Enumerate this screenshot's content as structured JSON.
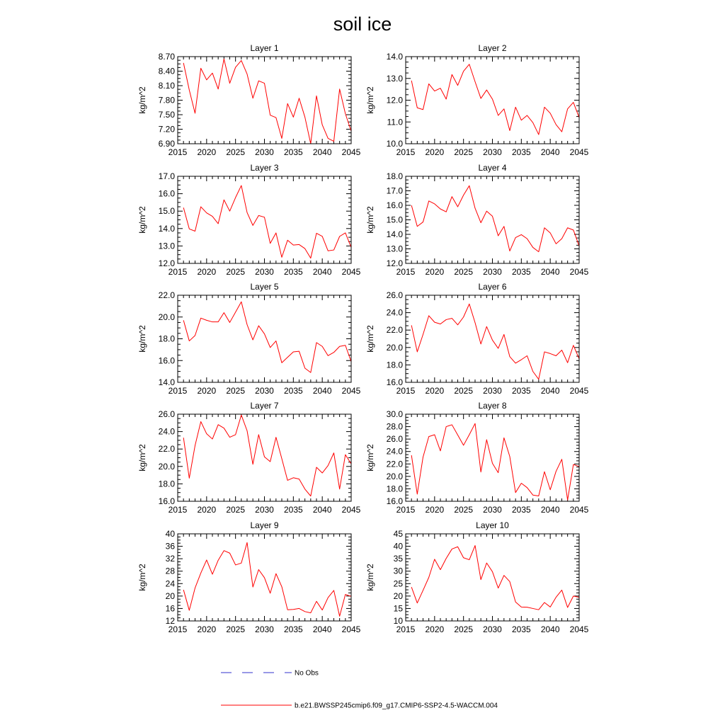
{
  "title": "soil ice",
  "legend": {
    "items": [
      {
        "label": "No Obs",
        "color": "#3333cc",
        "style": "dashed"
      },
      {
        "label": "b.e21.BWSSP245cmip6.f09_g17.CMIP6-SSP2-4.5-WACCM.004",
        "color": "#ff0000",
        "style": "solid"
      }
    ]
  },
  "chart_data": [
    {
      "type": "line",
      "title": "Layer 1",
      "ylabel": "kg/m^2",
      "x": [
        2016,
        2017,
        2018,
        2019,
        2020,
        2021,
        2022,
        2023,
        2024,
        2025,
        2026,
        2027,
        2028,
        2029,
        2030,
        2031,
        2032,
        2033,
        2034,
        2035,
        2036,
        2037,
        2038,
        2039,
        2040,
        2041,
        2042,
        2043,
        2044,
        2045
      ],
      "xlim": [
        2015,
        2045
      ],
      "xticks": [
        "2015",
        "2020",
        "2025",
        "2030",
        "2035",
        "2040",
        "2045"
      ],
      "ylim": [
        6.9,
        8.7
      ],
      "yticks": [
        "6.90",
        "7.20",
        "7.50",
        "7.80",
        "8.10",
        "8.40",
        "8.70"
      ],
      "series": [
        {
          "name": "b.e21.BWSSP245cmip6.f09_g17.CMIP6-SSP2-4.5-WACCM.004",
          "color": "#ff0000",
          "values": [
            8.57,
            8.01,
            7.53,
            8.46,
            8.22,
            8.36,
            8.03,
            8.65,
            8.15,
            8.48,
            8.62,
            8.34,
            7.84,
            8.2,
            8.15,
            7.49,
            7.44,
            7.01,
            7.73,
            7.45,
            7.84,
            7.45,
            6.9,
            7.89,
            7.29,
            7.01,
            6.95,
            8.03,
            7.52,
            7.16
          ]
        }
      ]
    },
    {
      "type": "line",
      "title": "Layer 2",
      "ylabel": "kg/m^2",
      "x": [
        2016,
        2017,
        2018,
        2019,
        2020,
        2021,
        2022,
        2023,
        2024,
        2025,
        2026,
        2027,
        2028,
        2029,
        2030,
        2031,
        2032,
        2033,
        2034,
        2035,
        2036,
        2037,
        2038,
        2039,
        2040,
        2041,
        2042,
        2043,
        2044,
        2045
      ],
      "xlim": [
        2015,
        2045
      ],
      "xticks": [
        "2015",
        "2020",
        "2025",
        "2030",
        "2035",
        "2040",
        "2045"
      ],
      "ylim": [
        10.0,
        14.0
      ],
      "yticks": [
        "10.0",
        "11.0",
        "12.0",
        "13.0",
        "14.0"
      ],
      "series": [
        {
          "name": "b.e21.BWSSP245cmip6.f09_g17.CMIP6-SSP2-4.5-WACCM.004",
          "color": "#ff0000",
          "values": [
            12.9,
            11.65,
            11.57,
            12.75,
            12.42,
            12.55,
            12.05,
            13.18,
            12.68,
            13.33,
            13.65,
            12.85,
            12.08,
            12.47,
            12.05,
            11.3,
            11.6,
            10.6,
            11.68,
            11.08,
            11.3,
            10.97,
            10.42,
            11.68,
            11.4,
            10.88,
            10.55,
            11.6,
            11.9,
            11.2
          ]
        }
      ]
    },
    {
      "type": "line",
      "title": "Layer 3",
      "ylabel": "kg/m^2",
      "x": [
        2016,
        2017,
        2018,
        2019,
        2020,
        2021,
        2022,
        2023,
        2024,
        2025,
        2026,
        2027,
        2028,
        2029,
        2030,
        2031,
        2032,
        2033,
        2034,
        2035,
        2036,
        2037,
        2038,
        2039,
        2040,
        2041,
        2042,
        2043,
        2044,
        2045
      ],
      "xlim": [
        2015,
        2045
      ],
      "xticks": [
        "2015",
        "2020",
        "2025",
        "2030",
        "2035",
        "2040",
        "2045"
      ],
      "ylim": [
        12.0,
        17.0
      ],
      "yticks": [
        "12.0",
        "13.0",
        "14.0",
        "15.0",
        "16.0",
        "17.0"
      ],
      "series": [
        {
          "name": "b.e21.BWSSP245cmip6.f09_g17.CMIP6-SSP2-4.5-WACCM.004",
          "color": "#ff0000",
          "values": [
            15.2,
            13.98,
            13.85,
            15.25,
            14.9,
            14.7,
            14.28,
            15.65,
            15.0,
            15.78,
            16.47,
            14.92,
            14.18,
            14.75,
            14.65,
            13.15,
            13.75,
            12.35,
            13.33,
            13.05,
            13.08,
            12.85,
            12.3,
            13.73,
            13.55,
            12.72,
            12.77,
            13.55,
            13.75,
            12.92
          ]
        }
      ]
    },
    {
      "type": "line",
      "title": "Layer 4",
      "ylabel": "kg/m^2",
      "x": [
        2016,
        2017,
        2018,
        2019,
        2020,
        2021,
        2022,
        2023,
        2024,
        2025,
        2026,
        2027,
        2028,
        2029,
        2030,
        2031,
        2032,
        2033,
        2034,
        2035,
        2036,
        2037,
        2038,
        2039,
        2040,
        2041,
        2042,
        2043,
        2044,
        2045
      ],
      "xlim": [
        2015,
        2045
      ],
      "xticks": [
        "2015",
        "2020",
        "2025",
        "2030",
        "2035",
        "2040",
        "2045"
      ],
      "ylim": [
        12.0,
        18.0
      ],
      "yticks": [
        "12.0",
        "13.0",
        "14.0",
        "15.0",
        "16.0",
        "17.0",
        "18.0"
      ],
      "series": [
        {
          "name": "b.e21.BWSSP245cmip6.f09_g17.CMIP6-SSP2-4.5-WACCM.004",
          "color": "#ff0000",
          "values": [
            16.0,
            14.55,
            14.85,
            16.3,
            16.1,
            15.75,
            15.55,
            16.6,
            15.9,
            16.7,
            17.35,
            15.8,
            14.8,
            15.6,
            15.25,
            13.9,
            14.55,
            12.85,
            13.78,
            13.98,
            13.7,
            13.1,
            12.8,
            14.45,
            14.1,
            13.35,
            13.7,
            14.45,
            14.3,
            13.2
          ]
        }
      ]
    },
    {
      "type": "line",
      "title": "Layer 5",
      "ylabel": "kg/m^2",
      "x": [
        2016,
        2017,
        2018,
        2019,
        2020,
        2021,
        2022,
        2023,
        2024,
        2025,
        2026,
        2027,
        2028,
        2029,
        2030,
        2031,
        2032,
        2033,
        2034,
        2035,
        2036,
        2037,
        2038,
        2039,
        2040,
        2041,
        2042,
        2043,
        2044,
        2045
      ],
      "xlim": [
        2015,
        2045
      ],
      "xticks": [
        "2015",
        "2020",
        "2025",
        "2030",
        "2035",
        "2040",
        "2045"
      ],
      "ylim": [
        14.0,
        22.0
      ],
      "yticks": [
        "14.0",
        "16.0",
        "18.0",
        "20.0",
        "22.0"
      ],
      "series": [
        {
          "name": "b.e21.BWSSP245cmip6.f09_g17.CMIP6-SSP2-4.5-WACCM.004",
          "color": "#ff0000",
          "values": [
            19.7,
            17.8,
            18.3,
            19.9,
            19.7,
            19.55,
            19.55,
            20.4,
            19.5,
            20.45,
            21.4,
            19.3,
            17.9,
            19.2,
            18.45,
            17.2,
            17.8,
            15.8,
            16.3,
            16.8,
            16.85,
            15.3,
            14.9,
            17.65,
            17.3,
            16.45,
            16.75,
            17.3,
            17.4,
            15.9
          ]
        }
      ]
    },
    {
      "type": "line",
      "title": "Layer 6",
      "ylabel": "kg/m^2",
      "x": [
        2016,
        2017,
        2018,
        2019,
        2020,
        2021,
        2022,
        2023,
        2024,
        2025,
        2026,
        2027,
        2028,
        2029,
        2030,
        2031,
        2032,
        2033,
        2034,
        2035,
        2036,
        2037,
        2038,
        2039,
        2040,
        2041,
        2042,
        2043,
        2044,
        2045
      ],
      "xlim": [
        2015,
        2045
      ],
      "xticks": [
        "2015",
        "2020",
        "2025",
        "2030",
        "2035",
        "2040",
        "2045"
      ],
      "ylim": [
        16.0,
        26.0
      ],
      "yticks": [
        "16.0",
        "18.0",
        "20.0",
        "22.0",
        "24.0",
        "26.0"
      ],
      "series": [
        {
          "name": "b.e21.BWSSP245cmip6.f09_g17.CMIP6-SSP2-4.5-WACCM.004",
          "color": "#ff0000",
          "values": [
            22.55,
            19.5,
            21.5,
            23.65,
            22.9,
            22.7,
            23.2,
            23.35,
            22.6,
            23.5,
            25.0,
            22.85,
            20.4,
            22.4,
            20.85,
            19.9,
            21.5,
            18.95,
            18.2,
            18.6,
            19.05,
            17.25,
            16.35,
            19.5,
            19.3,
            19.05,
            19.7,
            18.25,
            20.25,
            18.7
          ]
        }
      ]
    },
    {
      "type": "line",
      "title": "Layer 7",
      "ylabel": "kg/m^2",
      "x": [
        2016,
        2017,
        2018,
        2019,
        2020,
        2021,
        2022,
        2023,
        2024,
        2025,
        2026,
        2027,
        2028,
        2029,
        2030,
        2031,
        2032,
        2033,
        2034,
        2035,
        2036,
        2037,
        2038,
        2039,
        2040,
        2041,
        2042,
        2043,
        2044,
        2045
      ],
      "xlim": [
        2015,
        2045
      ],
      "xticks": [
        "2015",
        "2020",
        "2025",
        "2030",
        "2035",
        "2040",
        "2045"
      ],
      "ylim": [
        16.0,
        26.0
      ],
      "yticks": [
        "16.0",
        "18.0",
        "20.0",
        "22.0",
        "24.0",
        "26.0"
      ],
      "series": [
        {
          "name": "b.e21.BWSSP245cmip6.f09_g17.CMIP6-SSP2-4.5-WACCM.004",
          "color": "#ff0000",
          "values": [
            23.3,
            18.65,
            22.4,
            25.15,
            23.75,
            23.15,
            24.8,
            24.4,
            23.35,
            23.65,
            25.9,
            24.1,
            20.25,
            23.65,
            21.1,
            20.55,
            23.35,
            20.9,
            18.4,
            18.7,
            18.55,
            17.4,
            16.6,
            19.9,
            19.25,
            20.1,
            21.55,
            17.4,
            21.35,
            20.3
          ]
        }
      ]
    },
    {
      "type": "line",
      "title": "Layer 8",
      "ylabel": "kg/m^2",
      "x": [
        2016,
        2017,
        2018,
        2019,
        2020,
        2021,
        2022,
        2023,
        2024,
        2025,
        2026,
        2027,
        2028,
        2029,
        2030,
        2031,
        2032,
        2033,
        2034,
        2035,
        2036,
        2037,
        2038,
        2039,
        2040,
        2041,
        2042,
        2043,
        2044,
        2045
      ],
      "xlim": [
        2015,
        2045
      ],
      "xticks": [
        "2015",
        "2020",
        "2025",
        "2030",
        "2035",
        "2040",
        "2045"
      ],
      "ylim": [
        16.0,
        30.0
      ],
      "yticks": [
        "16.0",
        "18.0",
        "20.0",
        "22.0",
        "24.0",
        "26.0",
        "28.0",
        "30.0"
      ],
      "series": [
        {
          "name": "b.e21.BWSSP245cmip6.f09_g17.CMIP6-SSP2-4.5-WACCM.004",
          "color": "#ff0000",
          "values": [
            23.4,
            17.15,
            23.1,
            26.4,
            26.7,
            24.1,
            28.0,
            28.3,
            26.65,
            25.0,
            26.7,
            28.5,
            20.7,
            25.9,
            22.1,
            20.6,
            26.2,
            23.2,
            17.4,
            18.9,
            18.2,
            17.0,
            16.85,
            20.75,
            17.85,
            20.8,
            22.75,
            16.2,
            21.9,
            21.6
          ]
        }
      ]
    },
    {
      "type": "line",
      "title": "Layer 9",
      "ylabel": "kg/m^2",
      "x": [
        2016,
        2017,
        2018,
        2019,
        2020,
        2021,
        2022,
        2023,
        2024,
        2025,
        2026,
        2027,
        2028,
        2029,
        2030,
        2031,
        2032,
        2033,
        2034,
        2035,
        2036,
        2037,
        2038,
        2039,
        2040,
        2041,
        2042,
        2043,
        2044,
        2045
      ],
      "xlim": [
        2015,
        2045
      ],
      "xticks": [
        "2015",
        "2020",
        "2025",
        "2030",
        "2035",
        "2040",
        "2045"
      ],
      "ylim": [
        12,
        40
      ],
      "yticks": [
        "12",
        "16",
        "20",
        "24",
        "28",
        "32",
        "36",
        "40"
      ],
      "series": [
        {
          "name": "b.e21.BWSSP245cmip6.f09_g17.CMIP6-SSP2-4.5-WACCM.004",
          "color": "#ff0000",
          "values": [
            22.0,
            15.4,
            22.6,
            27.4,
            31.6,
            27.0,
            31.5,
            34.6,
            33.8,
            30.0,
            30.6,
            37.2,
            22.9,
            28.5,
            25.9,
            20.9,
            27.2,
            23.0,
            15.6,
            15.7,
            16.0,
            15.0,
            14.6,
            18.3,
            15.5,
            19.5,
            21.8,
            13.5,
            20.5,
            19.9
          ]
        }
      ]
    },
    {
      "type": "line",
      "title": "Layer 10",
      "ylabel": "kg/m^2",
      "x": [
        2016,
        2017,
        2018,
        2019,
        2020,
        2021,
        2022,
        2023,
        2024,
        2025,
        2026,
        2027,
        2028,
        2029,
        2030,
        2031,
        2032,
        2033,
        2034,
        2035,
        2036,
        2037,
        2038,
        2039,
        2040,
        2041,
        2042,
        2043,
        2044,
        2045
      ],
      "xlim": [
        2015,
        2045
      ],
      "xticks": [
        "2015",
        "2020",
        "2025",
        "2030",
        "2035",
        "2040",
        "2045"
      ],
      "ylim": [
        10,
        45
      ],
      "yticks": [
        "10",
        "15",
        "20",
        "25",
        "30",
        "35",
        "40",
        "45"
      ],
      "series": [
        {
          "name": "b.e21.BWSSP245cmip6.f09_g17.CMIP6-SSP2-4.5-WACCM.004",
          "color": "#ff0000",
          "values": [
            23.6,
            17.2,
            22.3,
            27.5,
            34.8,
            30.6,
            35.1,
            38.9,
            39.8,
            35.4,
            34.6,
            40.3,
            26.6,
            33.3,
            29.8,
            23.2,
            28.3,
            25.8,
            17.6,
            15.6,
            15.5,
            15.0,
            14.5,
            17.4,
            15.6,
            19.5,
            22.4,
            15.4,
            20.0,
            19.5
          ]
        }
      ]
    }
  ]
}
